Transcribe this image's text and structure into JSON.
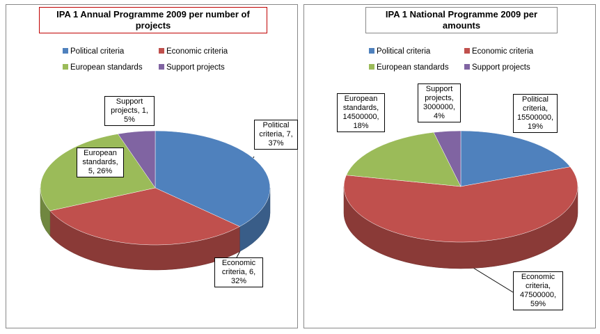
{
  "chart_data": [
    {
      "type": "pie",
      "title": "IPA 1 Annual Programme 2009 per number of projects",
      "categories": [
        "Political criteria",
        "Economic criteria",
        "European standards",
        "Support projects"
      ],
      "values": [
        7,
        6,
        5,
        1
      ],
      "value_labels": [
        "Political criteria, 7, 37%",
        "Economic criteria, 6, 32%",
        "European standards, 5, 26%",
        "Support projects, 1, 5%"
      ],
      "colors": [
        "#4f81bd",
        "#c0504d",
        "#9bbb59",
        "#8064a2"
      ]
    },
    {
      "type": "pie",
      "title": "IPA 1 National Programme 2009 per amounts",
      "categories": [
        "Political criteria",
        "Economic criteria",
        "European standards",
        "Support projects"
      ],
      "values": [
        15500000,
        47500000,
        14500000,
        3000000
      ],
      "value_labels": [
        "Political criteria, 15500000, 19%",
        "Economic criteria, 47500000, 59%",
        "European standards, 14500000, 18%",
        "Support projects, 3000000, 4%"
      ],
      "colors": [
        "#4f81bd",
        "#c0504d",
        "#9bbb59",
        "#8064a2"
      ]
    }
  ]
}
